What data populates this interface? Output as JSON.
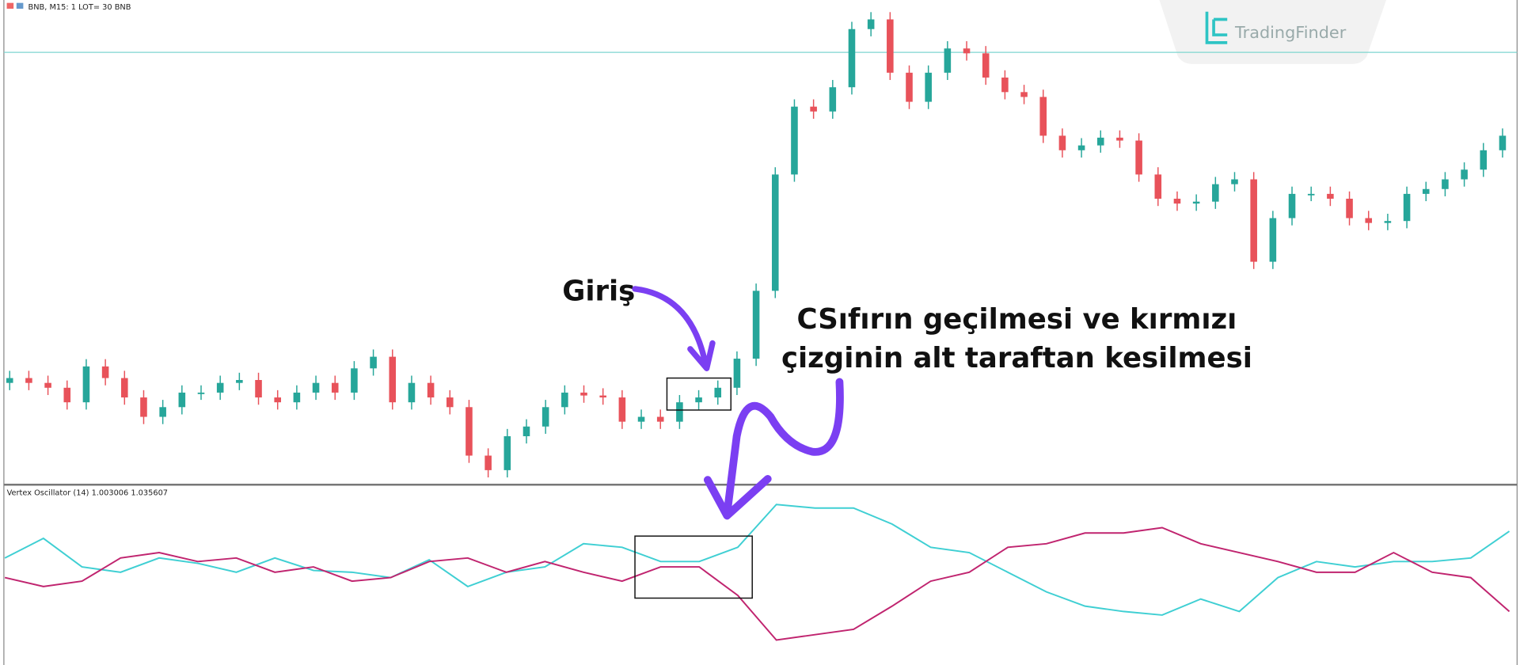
{
  "logo": "TradingFinder",
  "annotations": {
    "entry": "Giriş",
    "note_line1": "CSıfırın geçilmesi ve kırmızı",
    "note_line2": "çizginin alt taraftan kesilmesi"
  },
  "chart_data": [
    {
      "type": "candlestick",
      "title": "BNB, M15:  1 LOT= 30 BNB",
      "ylim": [
        0,
        100
      ],
      "up_color": "#26a69a",
      "down_color": "#e8525a",
      "hline": {
        "value": 89.2,
        "color": "#7fd6d0"
      },
      "open": [
        21,
        22,
        21,
        20,
        17,
        24.4,
        22,
        18,
        14,
        16,
        19,
        19,
        21,
        21.6,
        18,
        17,
        19,
        21,
        19,
        24,
        26.4,
        17,
        21,
        18,
        16,
        6,
        3,
        10,
        12,
        16,
        19,
        18.4,
        18,
        13,
        14,
        13,
        17,
        18,
        20,
        26,
        40,
        64,
        78,
        77,
        82,
        94,
        96,
        85,
        79,
        85,
        90,
        89,
        84,
        81,
        80,
        72,
        69,
        70,
        71.6,
        71,
        64,
        59,
        58,
        58.4,
        62,
        63,
        46,
        55,
        60,
        60,
        59,
        55,
        54,
        54.4,
        60,
        61,
        63,
        65,
        69
      ],
      "high": [
        23.5,
        23.5,
        22.5,
        21.5,
        25.9,
        25.9,
        23.5,
        19.5,
        17.5,
        20.5,
        20.5,
        22.5,
        23.1,
        23.1,
        19.5,
        20.5,
        22.5,
        22.5,
        25.5,
        27.9,
        27.9,
        22.5,
        22.5,
        19.5,
        17.5,
        7.5,
        11.5,
        13.5,
        17.5,
        20.5,
        20.5,
        19.9,
        19.5,
        15.5,
        15.5,
        18.5,
        19.5,
        21.5,
        27.5,
        41.5,
        65.5,
        79.5,
        79.5,
        83.5,
        95.5,
        97.5,
        97.5,
        86.5,
        86.5,
        91.5,
        91.5,
        90.5,
        85.5,
        82.5,
        81.5,
        73.5,
        71.5,
        73.1,
        73.1,
        72.5,
        65.5,
        60.5,
        59.9,
        63.5,
        64.5,
        64.5,
        56.5,
        61.5,
        61.5,
        61.5,
        60.5,
        56.5,
        55.9,
        61.5,
        62.5,
        64.5,
        66.5,
        70.5,
        73.5
      ],
      "low": [
        19.5,
        19.5,
        18.5,
        15.5,
        15.5,
        20.5,
        16.5,
        12.5,
        12.5,
        14.5,
        17.5,
        17.5,
        19.5,
        16.5,
        15.5,
        15.5,
        17.5,
        17.5,
        17.5,
        22.5,
        15.5,
        15.5,
        16.5,
        14.5,
        4.5,
        1.5,
        1.5,
        8.5,
        10.5,
        14.5,
        16.9,
        16.5,
        11.5,
        11.5,
        11.5,
        11.5,
        15.5,
        16.5,
        18.5,
        24.5,
        38.5,
        62.5,
        75.5,
        75.5,
        80.5,
        92.5,
        83.5,
        77.5,
        77.5,
        83.5,
        87.5,
        82.5,
        79.5,
        78.5,
        70.5,
        67.5,
        67.5,
        68.5,
        69.5,
        62.5,
        57.5,
        56.5,
        56.5,
        56.9,
        60.5,
        44.5,
        44.5,
        53.5,
        58.5,
        57.5,
        53.5,
        52.5,
        52.5,
        52.9,
        58.5,
        59.5,
        61.5,
        63.5,
        67.5
      ],
      "close": [
        22,
        21,
        20,
        17,
        24.4,
        22,
        18,
        14,
        16,
        19,
        19,
        21,
        21.6,
        18,
        17,
        19,
        21,
        19,
        24,
        26.4,
        17,
        21,
        18,
        16,
        6,
        3,
        10,
        12,
        16,
        19,
        18.4,
        18,
        13,
        14,
        13,
        17,
        18,
        20,
        26,
        40,
        64,
        78,
        77,
        82,
        94,
        96,
        85,
        79,
        85,
        90,
        89,
        84,
        81,
        80,
        72,
        69,
        70,
        71.6,
        71,
        64,
        59,
        58,
        58.4,
        62,
        63,
        46,
        55,
        60,
        60,
        59,
        55,
        54,
        54.4,
        60,
        61,
        63,
        65,
        69,
        72
      ]
    },
    {
      "type": "line",
      "title": "Vertex Oscillator (14)  1.003006 1.035607",
      "ylim": [
        0,
        100
      ],
      "series": [
        {
          "color": "#3fcfd3",
          "values": [
            60,
            71,
            55,
            52,
            60,
            57,
            52,
            60,
            53,
            52,
            49,
            59,
            44,
            52,
            55,
            68,
            66,
            58,
            58,
            66,
            90,
            88,
            88,
            79,
            66,
            63,
            52,
            41,
            33,
            30,
            28,
            37,
            30,
            49,
            58,
            55,
            58,
            58,
            60,
            75
          ]
        },
        {
          "color": "#c0246f",
          "values": [
            49,
            44,
            47,
            60,
            63,
            58,
            60,
            52,
            55,
            47,
            49,
            58,
            60,
            52,
            58,
            52,
            47,
            55,
            55,
            39,
            14,
            17,
            20,
            33,
            47,
            52,
            66,
            68,
            74,
            74,
            77,
            68,
            63,
            58,
            52,
            52,
            63,
            52,
            49,
            30
          ]
        }
      ]
    }
  ]
}
